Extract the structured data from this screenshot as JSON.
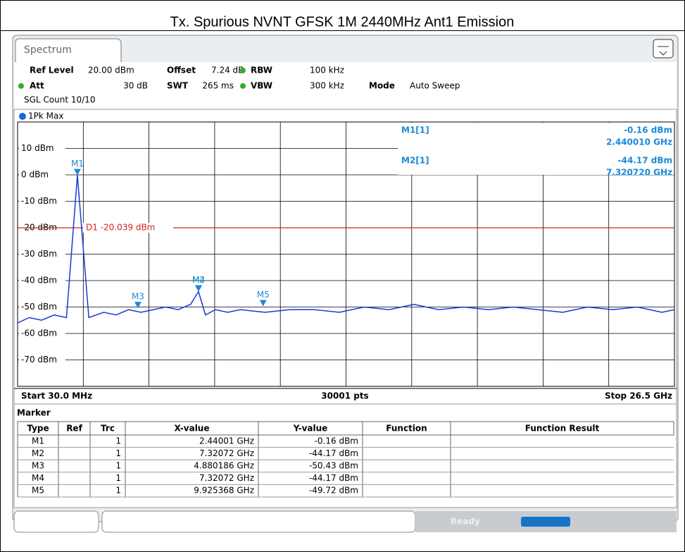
{
  "title": "Tx. Spurious NVNT GFSK 1M 2440MHz Ant1 Emission",
  "tab": "Spectrum",
  "settings": [
    {
      "label": "Ref Level",
      "value": "20.00 dBm"
    },
    {
      "label": "Offset",
      "value": "7.24 dB"
    },
    {
      "label": "RBW",
      "value": "100 kHz"
    },
    {
      "label": "Att",
      "value": "30 dB"
    },
    {
      "label": "SWT",
      "value": "265 ms"
    },
    {
      "label": "VBW",
      "value": "300 kHz"
    },
    {
      "label": "Mode",
      "value": "Auto Sweep"
    }
  ],
  "sweep_count": "SGL Count 10/10",
  "trace_label": "1Pk Max",
  "chart_data": {
    "type": "line",
    "xlim": [
      0.03,
      26.5
    ],
    "ylim": [
      -80,
      20
    ],
    "yticks": [
      {
        "value": 10,
        "label": "10 dBm"
      },
      {
        "value": 0,
        "label": "0 dBm"
      },
      {
        "value": -10,
        "label": "-10 dBm"
      },
      {
        "value": -20,
        "label": "-20 dBm"
      },
      {
        "value": -30,
        "label": "-30 dBm"
      },
      {
        "value": -40,
        "label": "-40 dBm"
      },
      {
        "value": -50,
        "label": "-50 dBm"
      },
      {
        "value": -60,
        "label": "-60 dBm"
      },
      {
        "value": -70,
        "label": "-70 dBm"
      }
    ],
    "x_divisions": 10,
    "grid": true,
    "start_label": "Start 30.0 MHz",
    "stop_label": "Stop 26.5 GHz",
    "points_label": "30001 pts",
    "series": [
      {
        "name": "1Pk Max",
        "color": "#1838d8",
        "x": [
          0.03,
          0.5,
          1,
          1.5,
          2,
          2.44,
          2.9,
          3.5,
          4,
          4.5,
          5,
          5.5,
          6,
          6.5,
          7,
          7.32,
          7.6,
          8,
          8.5,
          9,
          10,
          11,
          12,
          13,
          14,
          15,
          16,
          17,
          18,
          19,
          20,
          21,
          22,
          23,
          24,
          25,
          26,
          26.5
        ],
        "values": [
          -56,
          -54,
          -55,
          -53,
          -54,
          -0.16,
          -54,
          -52,
          -53,
          -51,
          -52,
          -51,
          -50,
          -51,
          -49,
          -44.17,
          -53,
          -51,
          -52,
          -51,
          -52,
          -51,
          -51,
          -52,
          -50,
          -51,
          -49,
          -51,
          -50,
          -51,
          -50,
          -51,
          -52,
          -50,
          -51,
          -50,
          -52,
          -51
        ]
      }
    ],
    "threshold": {
      "label": "D1 -20.039 dBm",
      "value": -20.039,
      "color": "#d42020"
    },
    "markers": [
      {
        "name": "M1",
        "x": 2.44001,
        "y": -0.16
      },
      {
        "name": "M2",
        "x": 7.32072,
        "y": -44.17
      },
      {
        "name": "M3",
        "x": 4.880186,
        "y": -50.43
      },
      {
        "name": "M4",
        "x": 7.32072,
        "y": -44.17
      },
      {
        "name": "M5",
        "x": 9.925368,
        "y": -49.72
      }
    ],
    "readout": [
      {
        "name": "M1[1]",
        "level": "-0.16 dBm",
        "freq": "2.440010 GHz"
      },
      {
        "name": "M2[1]",
        "level": "-44.17 dBm",
        "freq": "7.320720 GHz"
      }
    ]
  },
  "table": {
    "title": "Marker",
    "header": [
      "Type",
      "Ref",
      "Trc",
      "X-value",
      "Y-value",
      "Function",
      "Function Result"
    ],
    "rows": [
      [
        "M1",
        "",
        "1",
        "2.44001 GHz",
        "-0.16 dBm",
        "",
        ""
      ],
      [
        "M2",
        "",
        "1",
        "7.32072 GHz",
        "-44.17 dBm",
        "",
        ""
      ],
      [
        "M3",
        "",
        "1",
        "4.880186 GHz",
        "-50.43 dBm",
        "",
        ""
      ],
      [
        "M4",
        "",
        "1",
        "7.32072 GHz",
        "-44.17 dBm",
        "",
        ""
      ],
      [
        "M5",
        "",
        "1",
        "9.925368 GHz",
        "-49.72 dBm",
        "",
        ""
      ]
    ]
  },
  "status": "Ready"
}
